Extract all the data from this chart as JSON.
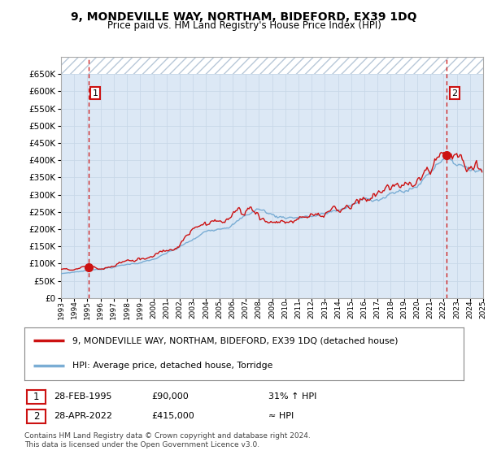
{
  "title": "9, MONDEVILLE WAY, NORTHAM, BIDEFORD, EX39 1DQ",
  "subtitle": "Price paid vs. HM Land Registry's House Price Index (HPI)",
  "legend_line1": "9, MONDEVILLE WAY, NORTHAM, BIDEFORD, EX39 1DQ (detached house)",
  "legend_line2": "HPI: Average price, detached house, Torridge",
  "annotation1_date": "28-FEB-1995",
  "annotation1_price": "£90,000",
  "annotation1_hpi": "31% ↑ HPI",
  "annotation2_date": "28-APR-2022",
  "annotation2_price": "£415,000",
  "annotation2_hpi": "≈ HPI",
  "footnote": "Contains HM Land Registry data © Crown copyright and database right 2024.\nThis data is licensed under the Open Government Licence v3.0.",
  "hpi_color": "#7aadd4",
  "price_color": "#cc1111",
  "bg_color": "#dce8f5",
  "hatch_color": "#b8c8d8",
  "grid_color": "#c8d8e8",
  "dashed_line_color": "#cc1111",
  "yticks": [
    0,
    50000,
    100000,
    150000,
    200000,
    250000,
    300000,
    350000,
    400000,
    450000,
    500000,
    550000,
    600000,
    650000
  ],
  "year_start": 1993,
  "year_end": 2025,
  "sale1_year": 1995.083,
  "sale1_price": 90000,
  "sale2_year": 2022.25,
  "sale2_price": 415000
}
